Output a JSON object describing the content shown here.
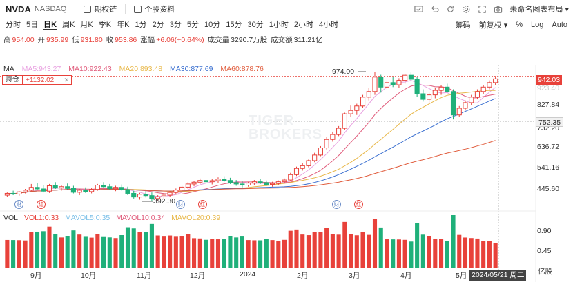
{
  "header": {
    "ticker": "NVDA",
    "exchange": "NASDAQ",
    "options_chain_label": "期权链",
    "profile_label": "个股资料",
    "layout_name": "未命名图表布局"
  },
  "toolbar": {
    "periods": [
      "分时",
      "5日",
      "日K",
      "周K",
      "月K",
      "季K",
      "年K",
      "1分",
      "2分",
      "3分",
      "5分",
      "10分",
      "15分",
      "30分",
      "1小时",
      "2小时",
      "4小时"
    ],
    "active_period": "日K",
    "right": {
      "chips": "筹码",
      "adjust": "前复权",
      "percent": "%",
      "log": "Log",
      "auto": "Auto"
    }
  },
  "info": {
    "high_label": "高",
    "high": "954.00",
    "open_label": "开",
    "open": "935.99",
    "low_label": "低",
    "low": "931.80",
    "close_label": "收",
    "close": "953.86",
    "change_label": "涨幅",
    "change": "+6.06(+0.64%)",
    "volume_label": "成交量",
    "volume": "3290.7万股",
    "turnover_label": "成交额",
    "turnover": "311.21亿"
  },
  "ma": {
    "label": "MA",
    "ma5": "MA5:943.27",
    "ma10": "MA10:922.43",
    "ma20": "MA20:893.48",
    "ma30": "MA30:877.69",
    "ma60": "MA60:878.76"
  },
  "holding": {
    "label": "持仓",
    "value": "+1132.02"
  },
  "vol": {
    "label": "VOL",
    "vol1": "VOL1:0.33",
    "mavol5": "MAVOL5:0.35",
    "mavol10": "MAVOL10:0.34",
    "mavol20": "MAVOL20:0.39"
  },
  "price_axis": {
    "labels": [
      "827.84",
      "732.20",
      "636.72",
      "541.16",
      "445.60"
    ],
    "current_price": "942.03",
    "crosshair_price": "752.35",
    "partial_label": "923.40"
  },
  "volume_axis": {
    "labels": [
      "0.90",
      "0.45"
    ],
    "unit": "亿股"
  },
  "date_axis": {
    "labels": [
      "9月",
      "10月",
      "11月",
      "12月",
      "2024",
      "2月",
      "3月",
      "4月",
      "5月"
    ],
    "cursor": "2024/05/21 周二"
  },
  "annotations": {
    "high": "974.00",
    "low": "392.30"
  },
  "badges": {
    "financial": "财",
    "dividend": "红"
  },
  "watermark": {
    "line1": "TIGER",
    "line2": "BROKERS"
  },
  "colors": {
    "up": "#e8413a",
    "down": "#1fb07a",
    "ma5": "#e8a0e0",
    "ma10": "#e05a7a",
    "ma20": "#e8b84a",
    "ma30": "#3a6fd0",
    "ma60": "#e05a3a"
  },
  "chart_data": {
    "type": "candlestick",
    "price_range": [
      392.3,
      974.0
    ],
    "candles": [
      [
        420,
        432,
        412,
        428
      ],
      [
        428,
        440,
        420,
        425
      ],
      [
        425,
        438,
        418,
        435
      ],
      [
        435,
        448,
        428,
        442
      ],
      [
        442,
        470,
        438,
        455
      ],
      [
        455,
        475,
        442,
        448
      ],
      [
        448,
        465,
        432,
        438
      ],
      [
        438,
        470,
        430,
        462
      ],
      [
        462,
        478,
        448,
        452
      ],
      [
        452,
        465,
        440,
        458
      ],
      [
        458,
        472,
        445,
        450
      ],
      [
        450,
        462,
        428,
        433
      ],
      [
        433,
        448,
        420,
        442
      ],
      [
        442,
        455,
        430,
        436
      ],
      [
        436,
        452,
        428,
        446
      ],
      [
        446,
        470,
        440,
        465
      ],
      [
        465,
        478,
        452,
        458
      ],
      [
        458,
        470,
        445,
        449
      ],
      [
        449,
        462,
        438,
        455
      ],
      [
        455,
        468,
        440,
        445
      ],
      [
        445,
        458,
        420,
        428
      ],
      [
        428,
        440,
        405,
        412
      ],
      [
        412,
        430,
        400,
        424
      ],
      [
        424,
        440,
        410,
        418
      ],
      [
        418,
        432,
        392,
        405
      ],
      [
        405,
        420,
        395,
        413
      ],
      [
        413,
        428,
        404,
        420
      ],
      [
        420,
        438,
        412,
        432
      ],
      [
        432,
        450,
        425,
        443
      ],
      [
        443,
        462,
        436,
        456
      ],
      [
        456,
        478,
        448,
        470
      ],
      [
        470,
        485,
        460,
        478
      ],
      [
        478,
        495,
        470,
        486
      ],
      [
        486,
        498,
        475,
        480
      ],
      [
        480,
        492,
        468,
        485
      ],
      [
        485,
        500,
        476,
        492
      ],
      [
        492,
        505,
        480,
        486
      ],
      [
        486,
        498,
        470,
        476
      ],
      [
        476,
        488,
        462,
        470
      ],
      [
        470,
        482,
        455,
        465
      ],
      [
        465,
        480,
        458,
        474
      ],
      [
        474,
        488,
        466,
        480
      ],
      [
        480,
        492,
        470,
        476
      ],
      [
        476,
        486,
        462,
        468
      ],
      [
        468,
        480,
        458,
        472
      ],
      [
        472,
        486,
        465,
        480
      ],
      [
        480,
        495,
        472,
        488
      ],
      [
        488,
        520,
        482,
        512
      ],
      [
        512,
        548,
        506,
        540
      ],
      [
        540,
        565,
        530,
        552
      ],
      [
        552,
        580,
        545,
        575
      ],
      [
        575,
        610,
        568,
        600
      ],
      [
        600,
        640,
        595,
        632
      ],
      [
        632,
        680,
        625,
        670
      ],
      [
        670,
        705,
        660,
        692
      ],
      [
        692,
        730,
        685,
        720
      ],
      [
        720,
        790,
        712,
        785
      ],
      [
        785,
        822,
        770,
        800
      ],
      [
        800,
        830,
        780,
        820
      ],
      [
        820,
        870,
        810,
        860
      ],
      [
        860,
        900,
        845,
        885
      ],
      [
        885,
        974,
        870,
        950
      ],
      [
        950,
        960,
        880,
        905
      ],
      [
        905,
        935,
        890,
        925
      ],
      [
        925,
        950,
        905,
        915
      ],
      [
        915,
        945,
        900,
        935
      ],
      [
        935,
        965,
        920,
        958
      ],
      [
        958,
        970,
        930,
        940
      ],
      [
        940,
        950,
        860,
        875
      ],
      [
        875,
        895,
        840,
        850
      ],
      [
        850,
        880,
        830,
        870
      ],
      [
        870,
        900,
        855,
        890
      ],
      [
        890,
        915,
        870,
        905
      ],
      [
        905,
        920,
        880,
        885
      ],
      [
        885,
        895,
        760,
        780
      ],
      [
        780,
        820,
        770,
        810
      ],
      [
        810,
        845,
        800,
        835
      ],
      [
        835,
        870,
        825,
        860
      ],
      [
        860,
        895,
        850,
        885
      ],
      [
        885,
        915,
        875,
        905
      ],
      [
        905,
        935,
        895,
        925
      ],
      [
        925,
        950,
        915,
        942
      ]
    ],
    "volume_range": [
      0,
      1.0
    ]
  }
}
